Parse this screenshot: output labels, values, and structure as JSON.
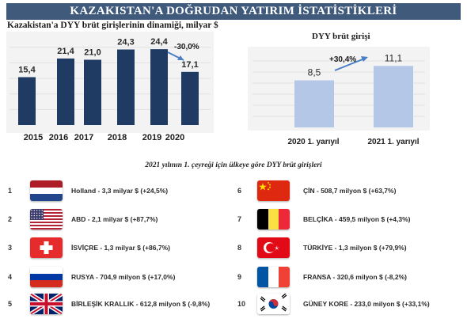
{
  "title": "KAZAKISTAN'A DOĞRUDAN YATIRIM İSTATİSTİKLERİ",
  "subtitle": "2021 yılının 1. çeyreği için ülkeye göre DYY brüt girişleri",
  "chart_data": [
    {
      "type": "bar",
      "title": "Kazakistan'a DYY brüt girişlerinin dinamiği, milyar $",
      "categories": [
        "2015",
        "2016",
        "2017",
        "2018",
        "2019",
        "2020"
      ],
      "values": [
        15.4,
        21.4,
        21.0,
        24.3,
        24.4,
        17.1
      ],
      "value_labels": [
        "15,4",
        "21,4",
        "21,0",
        "24,3",
        "24,4",
        "17,1"
      ],
      "annotation": "-30,0%",
      "ylim": [
        0,
        28
      ],
      "bar_color": "#1f3b63",
      "grid": true,
      "legend": "none"
    },
    {
      "type": "bar",
      "title": "DYY brüt girişi",
      "categories": [
        "2020 1. yarıyıl",
        "2021 1. yarıyıl"
      ],
      "values": [
        8.5,
        11.1
      ],
      "value_labels": [
        "8,5",
        "11,1"
      ],
      "annotation": "+30,4%",
      "ylim": [
        0,
        14
      ],
      "bar_color": "#b4c7e7",
      "grid": true,
      "legend": "none"
    }
  ],
  "countries": [
    {
      "rank": "1",
      "flag": "netherlands-flag",
      "label": "Holland - 3,3 milyar $ (+24,5%)"
    },
    {
      "rank": "2",
      "flag": "usa-flag",
      "label": "ABD - 2,1 milyar $ (+87,7%)"
    },
    {
      "rank": "3",
      "flag": "switzerland-flag",
      "label": "İSVİÇRE - 1,3 milyar $ (+86,7%)"
    },
    {
      "rank": "4",
      "flag": "russia-flag",
      "label": "RUSYA - 704,9 milyon $ (+17,0%)"
    },
    {
      "rank": "5",
      "flag": "uk-flag",
      "label": "BİRLEŞİK KRALLIK - 612,8 milyon $ (-9,8%)"
    },
    {
      "rank": "6",
      "flag": "china-flag",
      "label": "ÇİN - 508,7 milyon $ (+63,7%)"
    },
    {
      "rank": "7",
      "flag": "belgium-flag",
      "label": "BELÇİKA - 459,5 milyon $ (+4,3%)"
    },
    {
      "rank": "8",
      "flag": "turkey-flag",
      "label": "TÜRKİYE - 1,3 milyon $ (+79,9%)"
    },
    {
      "rank": "9",
      "flag": "france-flag",
      "label": "FRANSA - 320,6 milyon $ (-8,2%)"
    },
    {
      "rank": "10",
      "flag": "south-korea-flag",
      "label": "GÜNEY KORE - 233,0 milyon $ (+33,1%)"
    }
  ]
}
